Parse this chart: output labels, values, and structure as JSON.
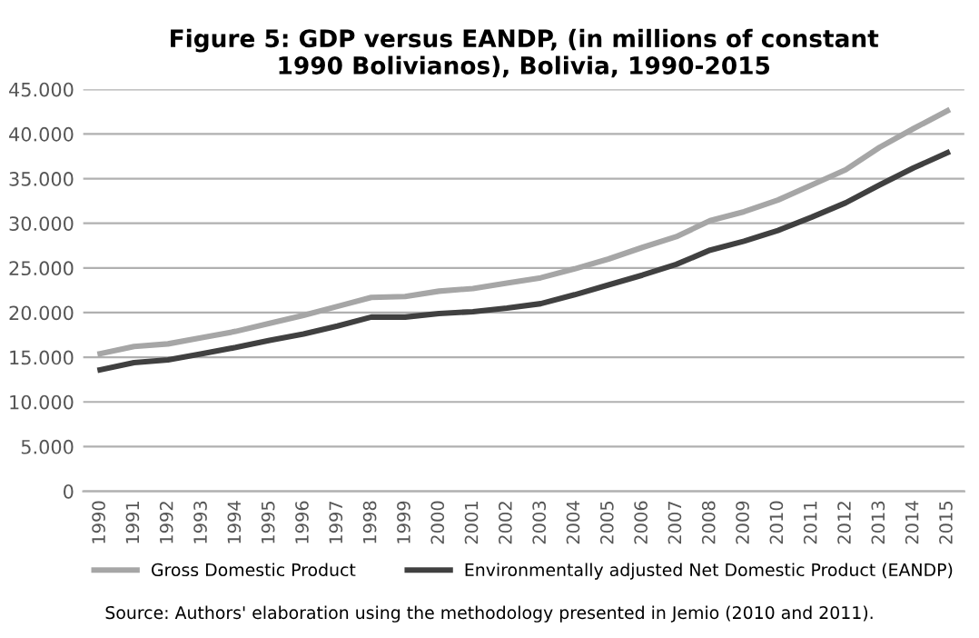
{
  "chart_data": {
    "type": "line",
    "title": "Figure 5: GDP versus EANDP, (in millions of constant\n1990 Bolivianos), Bolivia, 1990-2015",
    "categories": [
      "1990",
      "1991",
      "1992",
      "1993",
      "1994",
      "1995",
      "1996",
      "1997",
      "1998",
      "1999",
      "2000",
      "2001",
      "2002",
      "2003",
      "2004",
      "2005",
      "2006",
      "2007",
      "2008",
      "2009",
      "2010",
      "2011",
      "2012",
      "2013",
      "2014",
      "2015"
    ],
    "series": [
      {
        "name": "Gross Domestic Product",
        "color": "#a6a6a6",
        "values": [
          15400,
          16200,
          16500,
          17200,
          17900,
          18800,
          19700,
          20700,
          21700,
          21800,
          22400,
          22700,
          23300,
          23900,
          24900,
          26000,
          27300,
          28500,
          30300,
          31300,
          32600,
          34300,
          36000,
          38500,
          40600,
          42600
        ]
      },
      {
        "name": "Environmentally adjusted Net Domestic Product (EANDP)",
        "color": "#404040",
        "values": [
          13600,
          14400,
          14700,
          15400,
          16100,
          16900,
          17600,
          18500,
          19500,
          19500,
          19900,
          20100,
          20500,
          21000,
          22000,
          23100,
          24200,
          25400,
          27000,
          28000,
          29200,
          30700,
          32300,
          34300,
          36200,
          37900
        ]
      }
    ],
    "ylim": [
      0,
      45000
    ],
    "yticks": [
      {
        "value": 0,
        "label": "0"
      },
      {
        "value": 5000,
        "label": "5.000"
      },
      {
        "value": 10000,
        "label": "10.000"
      },
      {
        "value": 15000,
        "label": "15.000"
      },
      {
        "value": 20000,
        "label": "20.000"
      },
      {
        "value": 25000,
        "label": "25.000"
      },
      {
        "value": 30000,
        "label": "30.000"
      },
      {
        "value": 35000,
        "label": "35.000"
      },
      {
        "value": 40000,
        "label": "40.000"
      },
      {
        "value": 45000,
        "label": "45.000"
      }
    ],
    "grid": "y",
    "legend": "bottom",
    "marker": "none",
    "line_style": "solid",
    "annotations": [
      "Source: Authors' elaboration using the methodology presented in Jemio (2010 and 2011)."
    ]
  }
}
